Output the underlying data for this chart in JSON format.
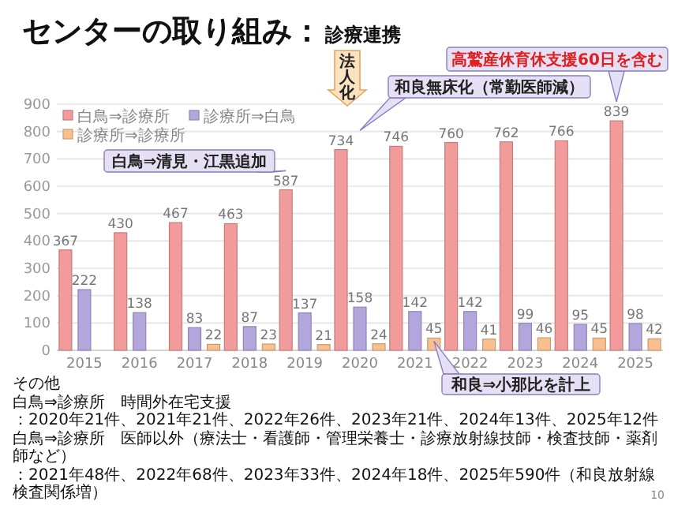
{
  "chart_data": {
    "type": "bar",
    "title": "センターの取り組み：",
    "subtitle": "診療連携",
    "categories": [
      "2015",
      "2016",
      "2017",
      "2018",
      "2019",
      "2020",
      "2021",
      "2022",
      "2023",
      "2024",
      "2025"
    ],
    "series": [
      {
        "name": "白鳥⇒診療所",
        "color": "#f29b9b",
        "values": [
          367,
          430,
          467,
          463,
          587,
          734,
          746,
          760,
          762,
          766,
          839
        ]
      },
      {
        "name": "診療所⇒白鳥",
        "color": "#b3a6dc",
        "values": [
          222,
          138,
          83,
          87,
          137,
          158,
          142,
          142,
          99,
          95,
          98
        ]
      },
      {
        "name": "診療所⇒診療所",
        "color": "#f8c08f",
        "values": [
          null,
          null,
          22,
          23,
          21,
          24,
          45,
          41,
          46,
          45,
          42
        ]
      }
    ],
    "ylim": [
      0,
      900
    ],
    "yticks": [
      0,
      100,
      200,
      300,
      400,
      500,
      600,
      700,
      800,
      900
    ],
    "grid": "y",
    "legend": "top left",
    "data_labels": true,
    "annotations": [
      "白鳥⇒清見・江黒追加",
      "法人化",
      "和良無床化（常勤医師減）",
      "高鷲産休育休支援60日を含む",
      "和良⇒小那比を計上",
      "その他",
      "白鳥⇒診療所　時間外在宅支援",
      "：2020年21件、2021年21件、2022年26件、2023年21件、2024年13件、2025年12件",
      "白鳥⇒診療所　医師以外（療法士・看護師・管理栄養士・診療放射線技師・検査技師・薬剤師など）",
      "：2021年48件、2022年68件、2023年33件、2024年18件、2025年590件（和良放射線検査関係増）",
      "10"
    ]
  }
}
